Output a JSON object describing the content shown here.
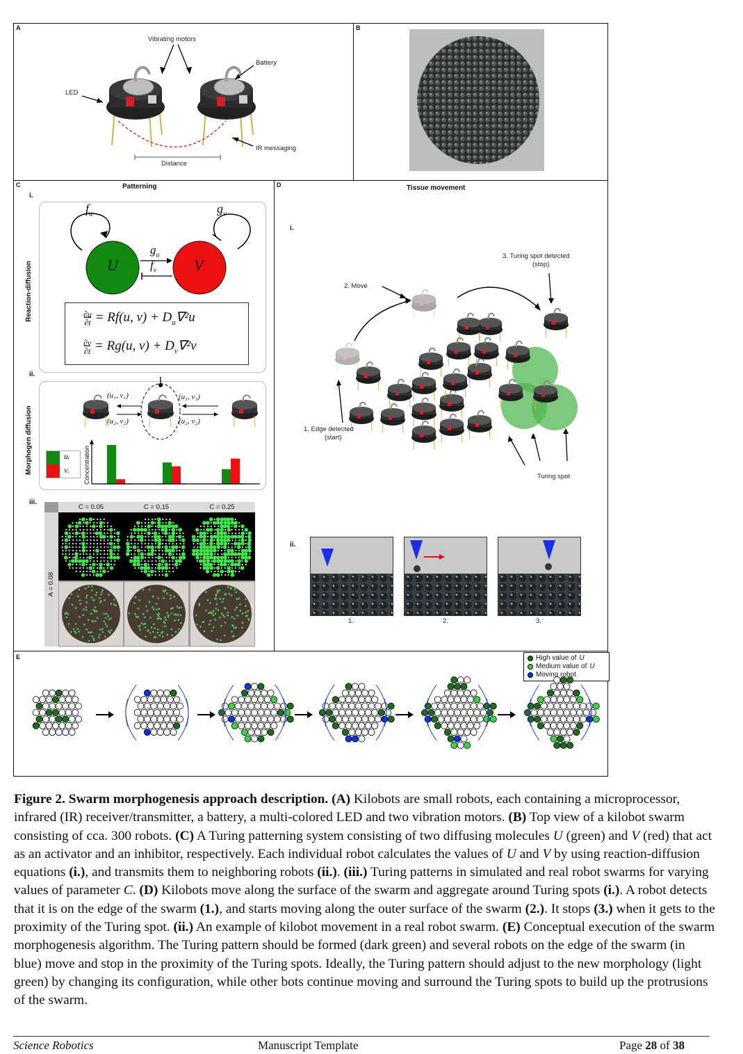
{
  "panelA": {
    "label": "A",
    "vibrating_motors": "Vibrating motors",
    "battery": "Battery",
    "led": "LED",
    "ir_messaging": "IR messaging",
    "distance": "Distance"
  },
  "panelB": {
    "label": "B"
  },
  "panelC": {
    "label": "C",
    "title": "Patterning",
    "sub_i": "i.",
    "sub_ii": "ii.",
    "sub_iii": "iii.",
    "side_reaction": "Reaction-diffusion",
    "side_morphogen": "Morphogen diffusion",
    "f_u": "f",
    "f_u_sub": "u",
    "g_v": "g",
    "g_v_sub": "v",
    "node_u": "U",
    "node_v": "V",
    "g_u": "g",
    "g_u_sub": "u",
    "f_v": "f",
    "f_v_sub": "v",
    "eq1_rhs": "= Rf(u, v) + D",
    "eq1_tail": "∇²u",
    "eq1_sub": "u",
    "eq2_rhs": "= Rg(u, v) + D",
    "eq2_tail": "∇²v",
    "eq2_sub": "v",
    "msg_top_left": "(u₁, v₁)",
    "msg_bottom_left": "(u₂, v₂)",
    "msg_top_right": "(u₃, v₃)",
    "msg_bottom_right": "(u₂, v₂)",
    "legend_u": "uᵢ",
    "legend_v": "vᵢ",
    "concentration": "Concentration",
    "c_labels": [
      "C = 0.05",
      "C = 0.15",
      "C = 0.25"
    ],
    "a_label": "A = 0.08",
    "bars": [
      {
        "u": 1.0,
        "v": 0.12
      },
      {
        "u": 0.55,
        "v": 0.45
      },
      {
        "u": 0.38,
        "v": 0.65
      }
    ]
  },
  "panelD": {
    "label": "D",
    "title": "Tissue movement",
    "sub_i": "i.",
    "sub_ii": "ii.",
    "turing_stop_1": "3. Turing spot detected",
    "turing_stop_2": "(stop)",
    "move": "2. Move",
    "edge_1": "1. Edge detected",
    "edge_2": "(start)",
    "turing_spot": "Turing spot",
    "frame_labels": [
      "1.",
      "2.",
      "3."
    ]
  },
  "panelE": {
    "label": "E",
    "legend": [
      {
        "text": "High value of ",
        "italic": "U",
        "color": "#1f6b22"
      },
      {
        "text": "Medium value of ",
        "italic": "U",
        "color": "#3fd14a"
      },
      {
        "text": "Moving robot",
        "italic": "",
        "color": "#1030e0"
      }
    ]
  },
  "caption": {
    "fig": "Figure 2. Swarm morphogenesis approach description.",
    "a_tag": "(A)",
    "a_text": "Kilobots are small robots, each containing a microprocessor, infrared (IR) receiver/transmitter, a battery, a multi-colored LED and two vibration motors.",
    "b_tag": "(B)",
    "b_text": "Top view of a kilobot swarm consisting of cca. 300 robots.",
    "c_tag": "(C)",
    "c_text1": "A Turing patterning system consisting of two diffusing molecules",
    "c_u": "U",
    "c_text2": "(green) and",
    "c_v": "V",
    "c_text3": "(red) that act as an activator and an inhibitor, respectively. Each individual robot calculates the values of",
    "c_u2": "U",
    "c_text4": "and",
    "c_v2": "V",
    "c_text5": "by using reaction-diffusion equations",
    "c_i": "(i.)",
    "c_text6": ", and transmits them to neighboring robots",
    "c_ii": "(ii.)",
    "c_dot": ".",
    "c_iii": "(iii.)",
    "c_text7": "Turing patterns in simulated and real robot swarms for varying values of parameter",
    "c_c": "C",
    "c_text8": ".",
    "d_tag": "(D)",
    "d_text1": "Kilobots move along the surface of the swarm and aggregate around Turing spots",
    "d_i": "(i.)",
    "d_text2": ". A robot detects that it is on the edge of the swarm",
    "d_1": "(1.)",
    "d_text3": ", and starts moving along the outer surface of the swarm",
    "d_2": "(2.)",
    "d_text4": ". It stops",
    "d_3": "(3.)",
    "d_text5": "when it gets to the proximity of the Turing spot.",
    "d_ii": "(ii.)",
    "d_text6": "An example of kilobot movement in a real robot swarm.",
    "e_tag": "(E)",
    "e_text": "Conceptual execution of the swarm morphogenesis algorithm. The Turing pattern should be formed (dark green) and several robots on the edge of the swarm (in blue) move and stop in the proximity of the Turing spots. Ideally, the Turing pattern should adjust to the new morphology (light green) by changing its configuration, while other bots continue moving and surround the Turing spots to build up the protrusions of the swarm."
  },
  "footer": {
    "journal": "Science Robotics",
    "template": "Manuscript Template",
    "page_prefix": "Page",
    "page_num": "28",
    "page_of": "of",
    "page_total": "38"
  },
  "colors": {
    "green_node": "#118a11",
    "red_node": "#ee1111",
    "dark_green": "#1f6b22",
    "light_green": "#3fd14a",
    "blue": "#1030e0"
  }
}
